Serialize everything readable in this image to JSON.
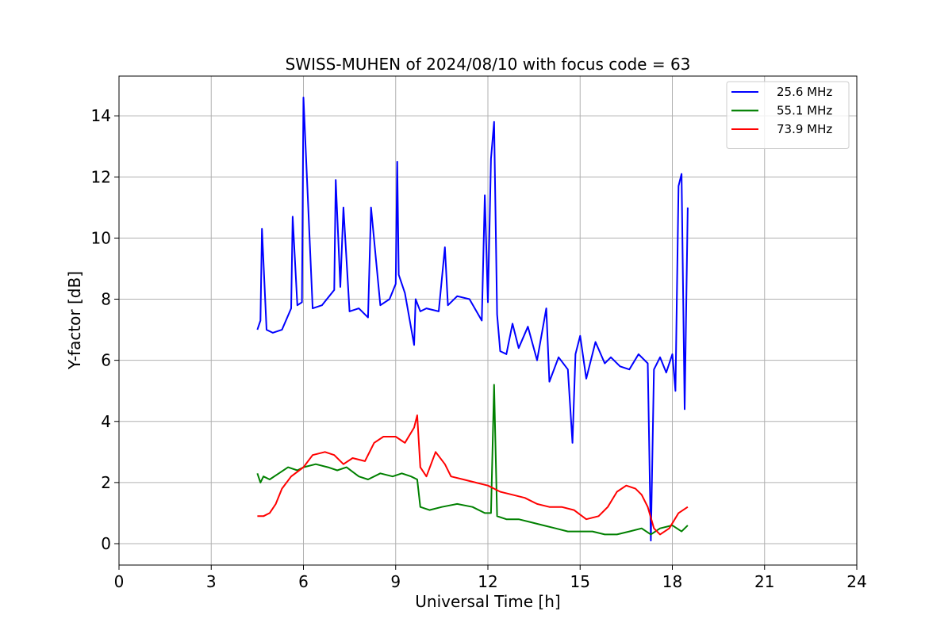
{
  "chart_data": {
    "type": "line",
    "title": "SWISS-MUHEN of 2024/08/10 with focus code = 63",
    "xlabel": "Universal Time [h]",
    "ylabel": "Y-factor [dB]",
    "xlim": [
      0,
      24
    ],
    "ylim": [
      -0.7,
      15.3
    ],
    "xticks": [
      0,
      3,
      6,
      9,
      12,
      15,
      18,
      21,
      24
    ],
    "xtick_labels": [
      "0",
      "3",
      "6",
      "9",
      "12",
      "15",
      "18",
      "21",
      "24"
    ],
    "yticks": [
      0,
      2,
      4,
      6,
      8,
      10,
      12,
      14
    ],
    "ytick_labels": [
      "0",
      "2",
      "4",
      "6",
      "8",
      "10",
      "12",
      "14"
    ],
    "grid": true,
    "legend_position": "top-right",
    "series": [
      {
        "name": "25.6 MHz",
        "color": "#0000ff",
        "x": [
          4.5,
          4.6,
          4.65,
          4.8,
          5.0,
          5.3,
          5.6,
          5.65,
          5.8,
          5.95,
          6.0,
          6.3,
          6.6,
          7.0,
          7.05,
          7.2,
          7.3,
          7.5,
          7.8,
          8.1,
          8.2,
          8.5,
          8.8,
          9.0,
          9.05,
          9.1,
          9.3,
          9.6,
          9.65,
          9.8,
          10.0,
          10.4,
          10.6,
          10.7,
          11.0,
          11.4,
          11.8,
          11.9,
          12.0,
          12.1,
          12.2,
          12.3,
          12.4,
          12.6,
          12.8,
          13.0,
          13.3,
          13.6,
          13.9,
          14.0,
          14.3,
          14.6,
          14.75,
          14.85,
          15.0,
          15.2,
          15.5,
          15.8,
          16.0,
          16.3,
          16.6,
          16.9,
          17.2,
          17.3,
          17.4,
          17.6,
          17.8,
          18.0,
          18.1,
          18.2,
          18.3,
          18.4,
          18.5
        ],
        "values": [
          7.0,
          7.3,
          10.3,
          7.0,
          6.9,
          7.0,
          7.7,
          10.7,
          7.8,
          7.9,
          14.6,
          7.7,
          7.8,
          8.3,
          11.9,
          8.4,
          11.0,
          7.6,
          7.7,
          7.4,
          11.0,
          7.8,
          8.0,
          8.5,
          12.5,
          8.8,
          8.2,
          6.5,
          8.0,
          7.6,
          7.7,
          7.6,
          9.7,
          7.8,
          8.1,
          8.0,
          7.3,
          11.4,
          7.9,
          12.6,
          13.8,
          7.5,
          6.3,
          6.2,
          7.2,
          6.4,
          7.1,
          6.0,
          7.7,
          5.3,
          6.1,
          5.7,
          3.3,
          6.2,
          6.8,
          5.4,
          6.6,
          5.9,
          6.1,
          5.8,
          5.7,
          6.2,
          5.9,
          0.1,
          5.7,
          6.1,
          5.6,
          6.2,
          5.0,
          11.7,
          12.1,
          4.4,
          11.0
        ]
      },
      {
        "name": "55.1 MHz",
        "color": "#008000",
        "x": [
          4.5,
          4.6,
          4.7,
          4.9,
          5.2,
          5.5,
          5.8,
          6.0,
          6.4,
          6.8,
          7.1,
          7.4,
          7.8,
          8.1,
          8.5,
          8.9,
          9.2,
          9.5,
          9.7,
          9.8,
          10.1,
          10.5,
          11.0,
          11.5,
          11.9,
          12.1,
          12.2,
          12.3,
          12.6,
          13.0,
          13.4,
          13.8,
          14.2,
          14.6,
          15.0,
          15.4,
          15.8,
          16.2,
          16.6,
          17.0,
          17.3,
          17.6,
          18.0,
          18.3,
          18.5
        ],
        "values": [
          2.3,
          2.0,
          2.2,
          2.1,
          2.3,
          2.5,
          2.4,
          2.5,
          2.6,
          2.5,
          2.4,
          2.5,
          2.2,
          2.1,
          2.3,
          2.2,
          2.3,
          2.2,
          2.1,
          1.2,
          1.1,
          1.2,
          1.3,
          1.2,
          1.0,
          1.0,
          5.2,
          0.9,
          0.8,
          0.8,
          0.7,
          0.6,
          0.5,
          0.4,
          0.4,
          0.4,
          0.3,
          0.3,
          0.4,
          0.5,
          0.3,
          0.5,
          0.6,
          0.4,
          0.6
        ]
      },
      {
        "name": "73.9 MHz",
        "color": "#ff0000",
        "x": [
          4.5,
          4.7,
          4.9,
          5.1,
          5.3,
          5.6,
          6.0,
          6.3,
          6.7,
          7.0,
          7.3,
          7.6,
          8.0,
          8.3,
          8.6,
          9.0,
          9.3,
          9.6,
          9.7,
          9.8,
          10.0,
          10.3,
          10.6,
          10.8,
          11.2,
          11.6,
          12.0,
          12.4,
          12.8,
          13.2,
          13.6,
          14.0,
          14.4,
          14.8,
          15.2,
          15.6,
          15.9,
          16.2,
          16.5,
          16.8,
          17.0,
          17.2,
          17.4,
          17.6,
          17.9,
          18.2,
          18.5
        ],
        "values": [
          0.9,
          0.9,
          1.0,
          1.3,
          1.8,
          2.2,
          2.5,
          2.9,
          3.0,
          2.9,
          2.6,
          2.8,
          2.7,
          3.3,
          3.5,
          3.5,
          3.3,
          3.8,
          4.2,
          2.5,
          2.2,
          3.0,
          2.6,
          2.2,
          2.1,
          2.0,
          1.9,
          1.7,
          1.6,
          1.5,
          1.3,
          1.2,
          1.2,
          1.1,
          0.8,
          0.9,
          1.2,
          1.7,
          1.9,
          1.8,
          1.6,
          1.2,
          0.5,
          0.3,
          0.5,
          1.0,
          1.2
        ]
      }
    ]
  }
}
